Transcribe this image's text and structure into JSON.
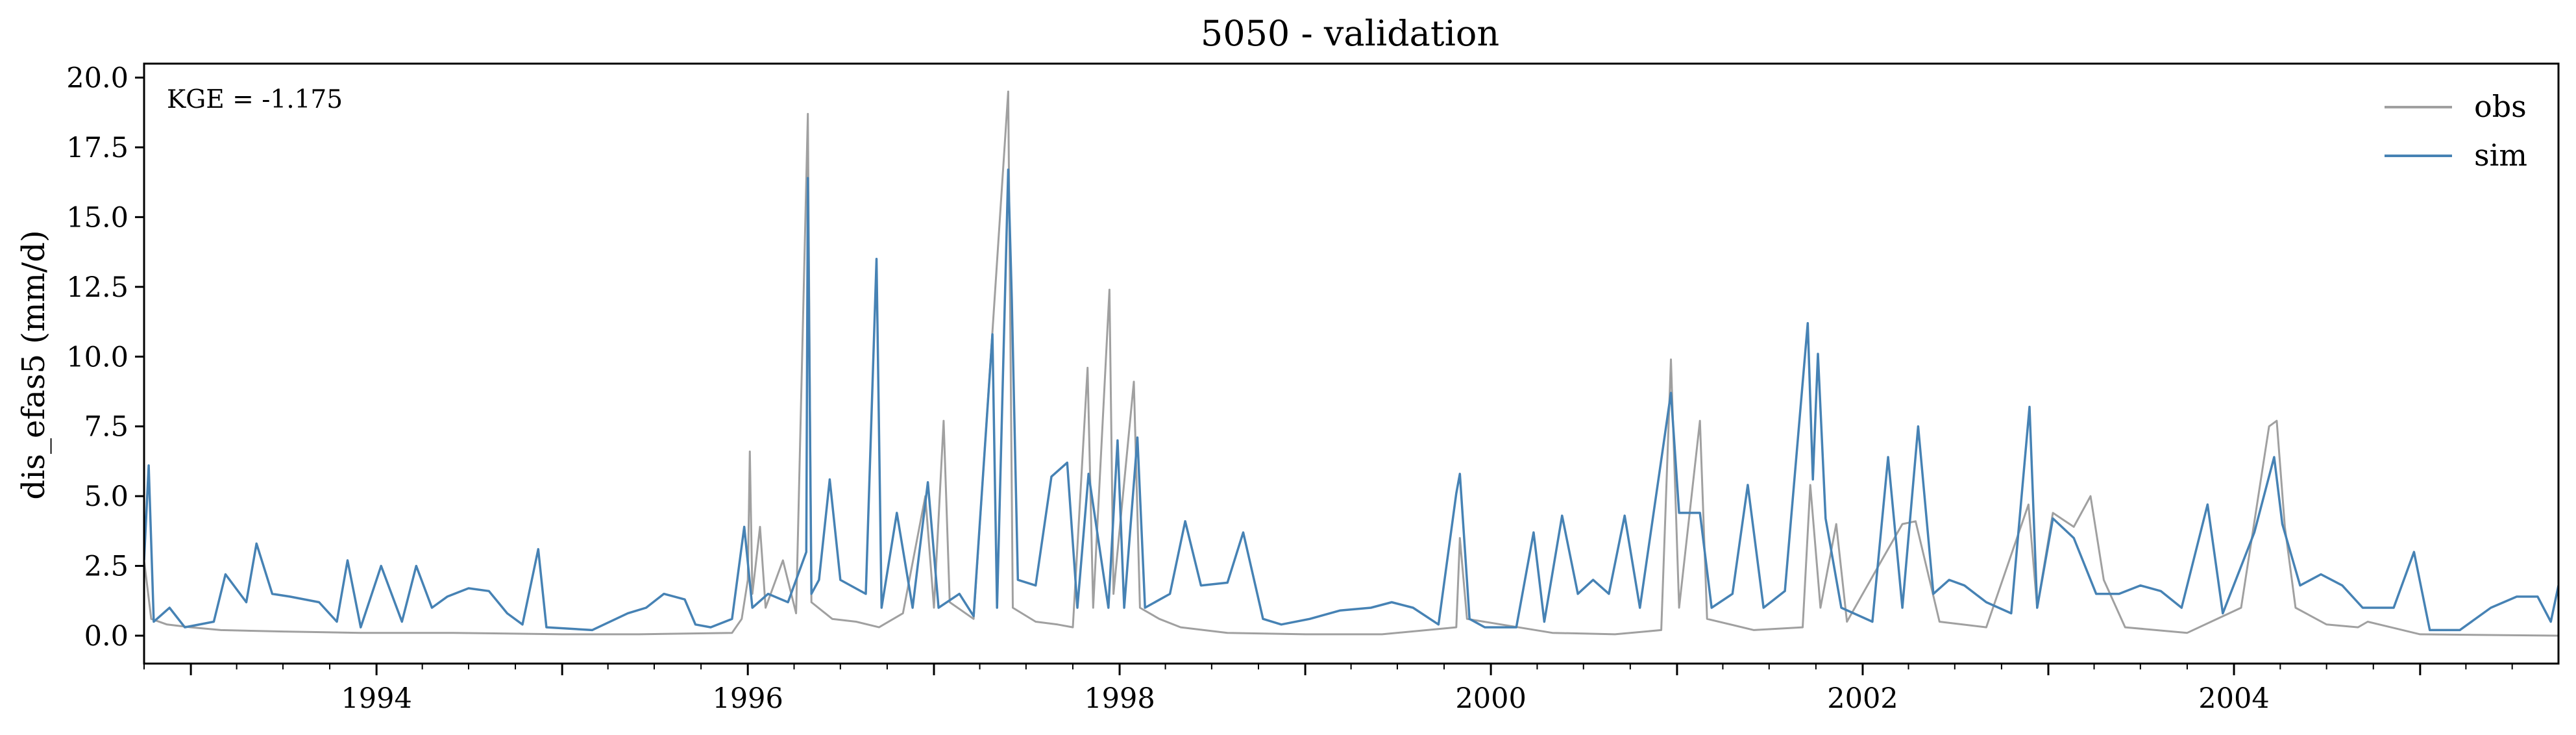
{
  "chart_data": {
    "type": "line",
    "title": "5050 - validation",
    "xlabel": "",
    "ylabel": "dis_efas5 (mm/d)",
    "annotation": "KGE = -1.175",
    "legend_position": "top-right",
    "grid": false,
    "xlim": [
      "1992-10-01",
      "2005-09-30"
    ],
    "ylim": [
      -1.0,
      20.5
    ],
    "x_ticks": [
      "1994",
      "1996",
      "1998",
      "2000",
      "2002",
      "2004"
    ],
    "y_ticks": [
      "0.0",
      "2.5",
      "5.0",
      "7.5",
      "10.0",
      "12.5",
      "15.0",
      "17.5",
      "20.0"
    ],
    "series": [
      {
        "name": "obs",
        "color": "#a0a0a0",
        "points": [
          [
            "1992-10-01",
            2.7
          ],
          [
            "1992-10-15",
            0.6
          ],
          [
            "1992-11-15",
            0.4
          ],
          [
            "1993-01-01",
            0.3
          ],
          [
            "1993-03-01",
            0.2
          ],
          [
            "1993-07-01",
            0.15
          ],
          [
            "1993-12-01",
            0.1
          ],
          [
            "1994-06-01",
            0.1
          ],
          [
            "1995-01-01",
            0.05
          ],
          [
            "1995-06-01",
            0.05
          ],
          [
            "1995-12-01",
            0.1
          ],
          [
            "1995-12-20",
            0.6
          ],
          [
            "1996-01-01",
            2.0
          ],
          [
            "1996-01-05",
            6.6
          ],
          [
            "1996-01-10",
            1.5
          ],
          [
            "1996-01-25",
            3.9
          ],
          [
            "1996-02-05",
            1.0
          ],
          [
            "1996-03-10",
            2.7
          ],
          [
            "1996-04-05",
            0.8
          ],
          [
            "1996-04-28",
            18.7
          ],
          [
            "1996-05-05",
            1.2
          ],
          [
            "1996-06-15",
            0.6
          ],
          [
            "1996-08-01",
            0.5
          ],
          [
            "1996-09-15",
            0.3
          ],
          [
            "1996-11-01",
            0.8
          ],
          [
            "1996-12-15",
            5.0
          ],
          [
            "1997-01-01",
            1.0
          ],
          [
            "1997-01-20",
            7.7
          ],
          [
            "1997-02-01",
            1.2
          ],
          [
            "1997-03-20",
            0.6
          ],
          [
            "1997-05-27",
            19.5
          ],
          [
            "1997-06-05",
            1.0
          ],
          [
            "1997-07-20",
            0.5
          ],
          [
            "1997-09-01",
            0.4
          ],
          [
            "1997-10-01",
            0.3
          ],
          [
            "1997-10-30",
            9.6
          ],
          [
            "1997-11-10",
            1.0
          ],
          [
            "1997-12-12",
            12.4
          ],
          [
            "1997-12-20",
            1.5
          ],
          [
            "1998-01-29",
            9.1
          ],
          [
            "1998-02-10",
            1.0
          ],
          [
            "1998-03-20",
            0.6
          ],
          [
            "1998-05-01",
            0.3
          ],
          [
            "1998-08-01",
            0.1
          ],
          [
            "1999-01-01",
            0.05
          ],
          [
            "1999-06-01",
            0.05
          ],
          [
            "1999-10-25",
            0.3
          ],
          [
            "1999-11-01",
            3.5
          ],
          [
            "1999-11-15",
            0.6
          ],
          [
            "2000-05-01",
            0.1
          ],
          [
            "2000-09-01",
            0.05
          ],
          [
            "2000-12-01",
            0.2
          ],
          [
            "2000-12-20",
            9.9
          ],
          [
            "2001-01-05",
            1.0
          ],
          [
            "2001-02-15",
            7.7
          ],
          [
            "2001-03-01",
            0.6
          ],
          [
            "2001-06-01",
            0.2
          ],
          [
            "2001-09-05",
            0.3
          ],
          [
            "2001-09-20",
            5.4
          ],
          [
            "2001-10-10",
            1.0
          ],
          [
            "2001-11-10",
            4.0
          ],
          [
            "2001-12-01",
            0.5
          ],
          [
            "2002-02-01",
            2.5
          ],
          [
            "2002-03-20",
            4.0
          ],
          [
            "2002-04-15",
            4.1
          ],
          [
            "2002-06-01",
            0.5
          ],
          [
            "2002-09-01",
            0.3
          ],
          [
            "2002-11-23",
            4.7
          ],
          [
            "2002-12-10",
            1.0
          ],
          [
            "2003-01-10",
            4.4
          ],
          [
            "2003-02-20",
            3.9
          ],
          [
            "2003-03-25",
            5.0
          ],
          [
            "2003-04-20",
            2.0
          ],
          [
            "2003-06-01",
            0.3
          ],
          [
            "2003-10-01",
            0.1
          ],
          [
            "2004-01-15",
            1.0
          ],
          [
            "2004-03-10",
            7.5
          ],
          [
            "2004-03-25",
            7.7
          ],
          [
            "2004-04-10",
            3.9
          ],
          [
            "2004-05-01",
            1.0
          ],
          [
            "2004-07-01",
            0.4
          ],
          [
            "2004-09-01",
            0.3
          ],
          [
            "2004-09-20",
            0.5
          ],
          [
            "2005-01-01",
            0.05
          ],
          [
            "2005-09-30",
            0.0
          ]
        ]
      },
      {
        "name": "sim",
        "color": "#4682b4",
        "points": [
          [
            "1992-10-01",
            2.7
          ],
          [
            "1992-10-10",
            6.1
          ],
          [
            "1992-10-20",
            0.5
          ],
          [
            "1992-11-20",
            1.0
          ],
          [
            "1992-12-20",
            0.3
          ],
          [
            "1993-02-15",
            0.5
          ],
          [
            "1993-03-10",
            2.2
          ],
          [
            "1993-04-20",
            1.2
          ],
          [
            "1993-05-10",
            3.3
          ],
          [
            "1993-06-10",
            1.5
          ],
          [
            "1993-07-15",
            1.4
          ],
          [
            "1993-09-10",
            1.2
          ],
          [
            "1993-10-15",
            0.5
          ],
          [
            "1993-11-05",
            2.7
          ],
          [
            "1993-12-01",
            0.3
          ],
          [
            "1994-01-10",
            2.5
          ],
          [
            "1994-02-20",
            0.5
          ],
          [
            "1994-03-20",
            2.5
          ],
          [
            "1994-04-20",
            1.0
          ],
          [
            "1994-05-20",
            1.4
          ],
          [
            "1994-07-01",
            1.7
          ],
          [
            "1994-08-10",
            1.6
          ],
          [
            "1994-09-15",
            0.8
          ],
          [
            "1994-10-15",
            0.4
          ],
          [
            "1994-11-15",
            3.1
          ],
          [
            "1994-12-01",
            0.3
          ],
          [
            "1995-03-01",
            0.2
          ],
          [
            "1995-05-10",
            0.8
          ],
          [
            "1995-06-15",
            1.0
          ],
          [
            "1995-07-20",
            1.5
          ],
          [
            "1995-08-30",
            1.3
          ],
          [
            "1995-09-20",
            0.4
          ],
          [
            "1995-10-20",
            0.3
          ],
          [
            "1995-12-01",
            0.6
          ],
          [
            "1995-12-25",
            3.9
          ],
          [
            "1996-01-10",
            1.0
          ],
          [
            "1996-02-10",
            1.5
          ],
          [
            "1996-03-20",
            1.2
          ],
          [
            "1996-04-25",
            3.0
          ],
          [
            "1996-04-28",
            16.4
          ],
          [
            "1996-05-05",
            1.5
          ],
          [
            "1996-05-20",
            2.0
          ],
          [
            "1996-06-10",
            5.6
          ],
          [
            "1996-07-01",
            2.0
          ],
          [
            "1996-08-20",
            1.5
          ],
          [
            "1996-09-10",
            13.5
          ],
          [
            "1996-09-20",
            1.0
          ],
          [
            "1996-10-20",
            4.4
          ],
          [
            "1996-11-20",
            1.0
          ],
          [
            "1996-12-20",
            5.5
          ],
          [
            "1997-01-10",
            1.0
          ],
          [
            "1997-02-20",
            1.5
          ],
          [
            "1997-03-20",
            0.7
          ],
          [
            "1997-04-26",
            10.8
          ],
          [
            "1997-05-05",
            1.0
          ],
          [
            "1997-05-27",
            16.7
          ],
          [
            "1997-06-03",
            12.1
          ],
          [
            "1997-06-15",
            2.0
          ],
          [
            "1997-07-20",
            1.8
          ],
          [
            "1997-08-20",
            5.7
          ],
          [
            "1997-09-20",
            6.2
          ],
          [
            "1997-10-10",
            1.0
          ],
          [
            "1997-11-01",
            5.8
          ],
          [
            "1997-12-10",
            1.0
          ],
          [
            "1997-12-28",
            7.0
          ],
          [
            "1998-01-10",
            1.0
          ],
          [
            "1998-02-05",
            7.1
          ],
          [
            "1998-02-20",
            1.0
          ],
          [
            "1998-04-10",
            1.5
          ],
          [
            "1998-05-10",
            4.1
          ],
          [
            "1998-06-10",
            1.8
          ],
          [
            "1998-08-01",
            1.9
          ],
          [
            "1998-09-01",
            3.7
          ],
          [
            "1998-10-10",
            0.6
          ],
          [
            "1998-11-15",
            0.4
          ],
          [
            "1999-01-10",
            0.6
          ],
          [
            "1999-03-10",
            0.9
          ],
          [
            "1999-05-10",
            1.0
          ],
          [
            "1999-06-20",
            1.2
          ],
          [
            "1999-08-01",
            1.0
          ],
          [
            "1999-09-20",
            0.4
          ],
          [
            "1999-10-25",
            5.1
          ],
          [
            "1999-11-01",
            5.8
          ],
          [
            "1999-11-20",
            0.6
          ],
          [
            "1999-12-20",
            0.3
          ],
          [
            "2000-02-20",
            0.3
          ],
          [
            "2000-03-25",
            3.7
          ],
          [
            "2000-04-15",
            0.5
          ],
          [
            "2000-05-20",
            4.3
          ],
          [
            "2000-06-20",
            1.5
          ],
          [
            "2000-07-20",
            2.0
          ],
          [
            "2000-08-20",
            1.5
          ],
          [
            "2000-09-20",
            4.3
          ],
          [
            "2000-10-20",
            1.0
          ],
          [
            "2000-12-20",
            8.7
          ],
          [
            "2001-01-05",
            4.4
          ],
          [
            "2001-02-15",
            4.4
          ],
          [
            "2001-03-10",
            1.0
          ],
          [
            "2001-04-20",
            1.5
          ],
          [
            "2001-05-20",
            5.4
          ],
          [
            "2001-06-20",
            1.0
          ],
          [
            "2001-08-01",
            1.6
          ],
          [
            "2001-09-15",
            11.2
          ],
          [
            "2001-09-25",
            5.6
          ],
          [
            "2001-10-05",
            10.1
          ],
          [
            "2001-10-20",
            4.2
          ],
          [
            "2001-11-20",
            1.0
          ],
          [
            "2002-01-20",
            0.5
          ],
          [
            "2002-02-20",
            6.4
          ],
          [
            "2002-03-20",
            1.0
          ],
          [
            "2002-04-20",
            7.5
          ],
          [
            "2002-05-20",
            1.5
          ],
          [
            "2002-06-20",
            2.0
          ],
          [
            "2002-07-20",
            1.8
          ],
          [
            "2002-09-01",
            1.2
          ],
          [
            "2002-10-20",
            0.8
          ],
          [
            "2002-11-25",
            8.2
          ],
          [
            "2002-12-10",
            1.0
          ],
          [
            "2003-01-10",
            4.2
          ],
          [
            "2003-02-20",
            3.5
          ],
          [
            "2003-04-05",
            1.5
          ],
          [
            "2003-05-20",
            1.5
          ],
          [
            "2003-07-01",
            1.8
          ],
          [
            "2003-08-10",
            1.6
          ],
          [
            "2003-09-20",
            1.0
          ],
          [
            "2003-11-10",
            4.7
          ],
          [
            "2003-12-10",
            0.8
          ],
          [
            "2004-02-10",
            3.7
          ],
          [
            "2004-03-20",
            6.4
          ],
          [
            "2004-04-05",
            4.0
          ],
          [
            "2004-05-10",
            1.8
          ],
          [
            "2004-06-20",
            2.2
          ],
          [
            "2004-08-01",
            1.8
          ],
          [
            "2004-09-10",
            1.0
          ],
          [
            "2004-11-10",
            1.0
          ],
          [
            "2004-12-20",
            3.0
          ],
          [
            "2005-01-20",
            0.2
          ],
          [
            "2005-03-20",
            0.2
          ],
          [
            "2005-05-20",
            1.0
          ],
          [
            "2005-07-10",
            1.4
          ],
          [
            "2005-08-20",
            1.4
          ],
          [
            "2005-09-15",
            0.5
          ],
          [
            "2005-09-30",
            1.8
          ]
        ]
      }
    ]
  }
}
